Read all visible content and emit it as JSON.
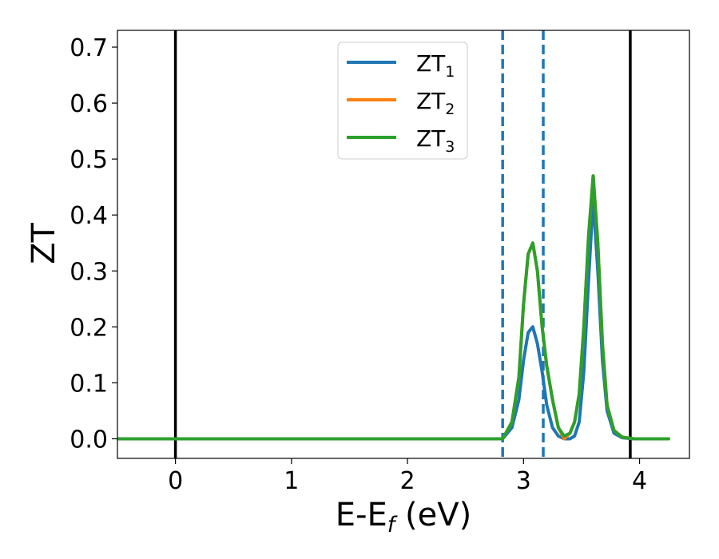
{
  "chart_data": {
    "type": "line",
    "xlabel_main": "E-E",
    "xlabel_sub": "f",
    "xlabel_unit": " (eV)",
    "ylabel": "ZT",
    "xlim": [
      -0.5,
      4.43
    ],
    "ylim": [
      -0.035,
      0.73
    ],
    "xticks": [
      0,
      1,
      2,
      3,
      4
    ],
    "yticks": [
      0.0,
      0.1,
      0.2,
      0.3,
      0.4,
      0.5,
      0.6,
      0.7
    ],
    "grid": false,
    "legend_position": "top-center",
    "vertical_lines": [
      {
        "x": 0.0,
        "style": "solid",
        "color": "#000000"
      },
      {
        "x": 3.92,
        "style": "solid",
        "color": "#000000"
      },
      {
        "x": 2.82,
        "style": "dashed",
        "color": "#1f77b4"
      },
      {
        "x": 3.17,
        "style": "dashed",
        "color": "#1f77b4"
      }
    ],
    "series": [
      {
        "name": "ZT",
        "name_sub": "1",
        "color": "#1f77b4",
        "x": [
          -0.5,
          2.6,
          2.82,
          2.9,
          2.96,
          3.0,
          3.04,
          3.08,
          3.12,
          3.16,
          3.2,
          3.25,
          3.3,
          3.35,
          3.4,
          3.44,
          3.48,
          3.52,
          3.56,
          3.6,
          3.64,
          3.68,
          3.72,
          3.78,
          3.85,
          3.95,
          4.25
        ],
        "y": [
          0.0,
          0.0,
          0.0,
          0.02,
          0.07,
          0.14,
          0.19,
          0.2,
          0.17,
          0.12,
          0.06,
          0.02,
          0.005,
          0.0,
          0.0,
          0.005,
          0.03,
          0.12,
          0.28,
          0.43,
          0.3,
          0.14,
          0.05,
          0.01,
          0.002,
          0.0,
          0.0
        ]
      },
      {
        "name": "ZT",
        "name_sub": "2",
        "color": "#ff7f0e",
        "x": [
          -0.5,
          2.6,
          2.82,
          2.9,
          2.96,
          3.0,
          3.04,
          3.08,
          3.12,
          3.16,
          3.2,
          3.25,
          3.3,
          3.35,
          3.4,
          3.44,
          3.48,
          3.52,
          3.56,
          3.6,
          3.64,
          3.68,
          3.72,
          3.78,
          3.85,
          3.95,
          4.25
        ],
        "y": [
          0.0,
          0.0,
          0.0,
          0.03,
          0.11,
          0.24,
          0.33,
          0.35,
          0.3,
          0.2,
          0.13,
          0.07,
          0.02,
          0.0,
          0.01,
          0.03,
          0.08,
          0.2,
          0.36,
          0.47,
          0.35,
          0.17,
          0.06,
          0.015,
          0.003,
          0.0,
          0.0
        ]
      },
      {
        "name": "ZT",
        "name_sub": "3",
        "color": "#2ca02c",
        "x": [
          -0.5,
          2.6,
          2.82,
          2.9,
          2.96,
          3.0,
          3.04,
          3.08,
          3.12,
          3.16,
          3.2,
          3.25,
          3.3,
          3.35,
          3.4,
          3.44,
          3.48,
          3.52,
          3.56,
          3.6,
          3.64,
          3.68,
          3.72,
          3.78,
          3.85,
          3.95,
          4.25
        ],
        "y": [
          0.0,
          0.0,
          0.0,
          0.03,
          0.11,
          0.24,
          0.33,
          0.35,
          0.3,
          0.2,
          0.13,
          0.07,
          0.02,
          0.005,
          0.01,
          0.03,
          0.08,
          0.2,
          0.36,
          0.47,
          0.35,
          0.17,
          0.06,
          0.015,
          0.003,
          0.0,
          0.0
        ]
      }
    ]
  }
}
